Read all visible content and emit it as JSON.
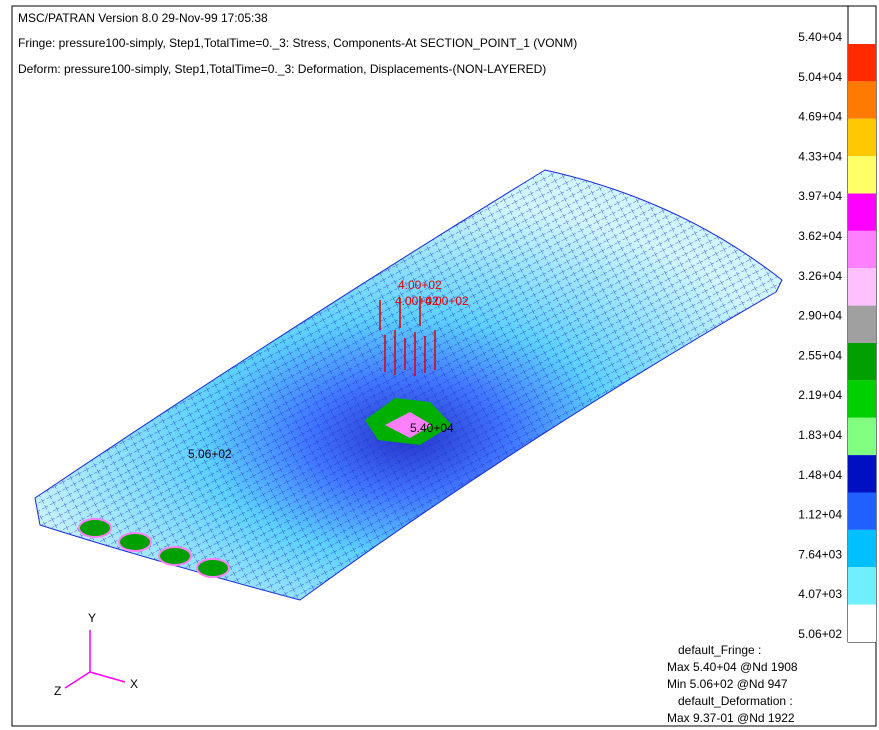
{
  "header": {
    "version": "MSC/PATRAN Version 8.0 29-Nov-99 17:05:38",
    "fringe": "Fringe: pressure100-simply, Step1,TotalTime=0._3: Stress, Components-At SECTION_POINT_1 (VONM)",
    "deform": "Deform: pressure100-simply, Step1,TotalTime=0._3: Deformation, Displacements-(NON-LAYERED)"
  },
  "legend": {
    "labels": [
      "5.40+04",
      "5.04+04",
      "4.69+04",
      "4.33+04",
      "3.97+04",
      "3.62+04",
      "3.26+04",
      "2.90+04",
      "2.55+04",
      "2.19+04",
      "1.83+04",
      "1.48+04",
      "1.12+04",
      "7.64+03",
      "4.07+03",
      "5.06+02"
    ],
    "colors": [
      "#ff2a00",
      "#ff7a00",
      "#ffc800",
      "#ffff66",
      "#ff00ff",
      "#ff80ff",
      "#ffc0ff",
      "#a0a0a0",
      "#00a000",
      "#00d000",
      "#80ff80",
      "#0010c0",
      "#2060ff",
      "#00c0ff",
      "#70f0ff",
      "#ffffff"
    ]
  },
  "annotations": {
    "load_top": "4.00+02",
    "load_labels": "4.00+02",
    "max_label": "5.40+04",
    "min_label": "5.06+02"
  },
  "axes": {
    "y": "Y",
    "z": "Z",
    "x": "X"
  },
  "footer": [
    "default_Fringe :",
    "Max 5.40+04 @Nd 1908",
    "Min 5.06+02 @Nd 947",
    "default_Deformation :",
    "Max 9.37-01 @Nd 1922"
  ]
}
